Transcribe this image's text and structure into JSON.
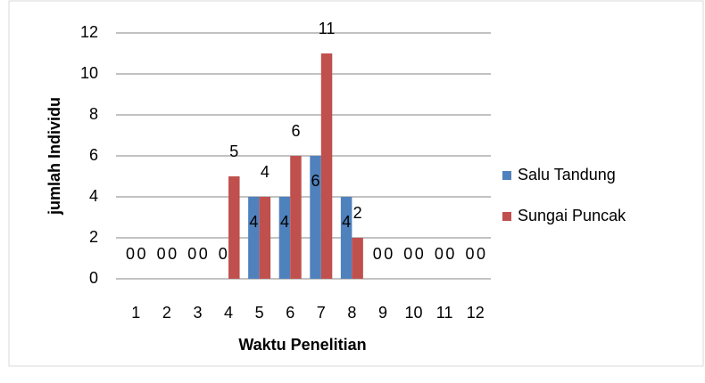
{
  "chart_data": {
    "type": "bar",
    "xlabel": "Waktu Penelitian",
    "ylabel": "jumlah Individu",
    "categories": [
      "1",
      "2",
      "3",
      "4",
      "5",
      "6",
      "7",
      "8",
      "9",
      "10",
      "11",
      "12"
    ],
    "series": [
      {
        "name": "Salu Tandung",
        "color": "#4f81bd",
        "values": [
          0,
          0,
          0,
          0,
          4,
          4,
          6,
          4,
          0,
          0,
          0,
          0
        ]
      },
      {
        "name": "Sungai Puncak",
        "color": "#c0504d",
        "values": [
          0,
          0,
          0,
          5,
          4,
          6,
          11,
          2,
          0,
          0,
          0,
          0
        ]
      }
    ],
    "ylim": [
      0,
      12
    ],
    "yticks": [
      0,
      2,
      4,
      6,
      8,
      10,
      12
    ],
    "grid": true,
    "legend": "right"
  }
}
